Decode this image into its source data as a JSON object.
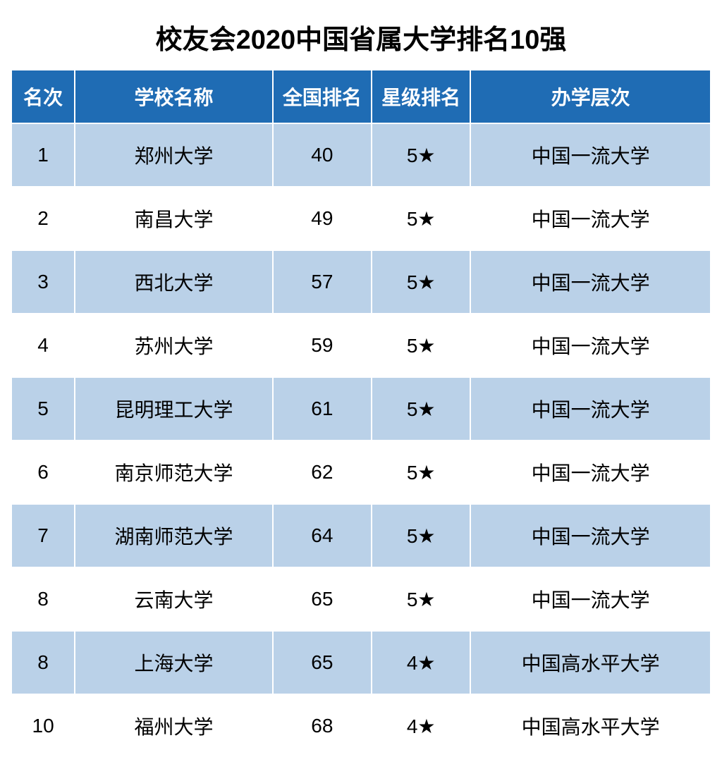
{
  "title": "校友会2020中国省属大学排名10强",
  "table": {
    "columns": [
      {
        "key": "rank",
        "label": "名次",
        "class": "col-rank"
      },
      {
        "key": "school",
        "label": "学校名称",
        "class": "col-school"
      },
      {
        "key": "national_rank",
        "label": "全国排名",
        "class": "col-national"
      },
      {
        "key": "star_rank",
        "label": "星级排名",
        "class": "col-star"
      },
      {
        "key": "level",
        "label": "办学层次",
        "class": "col-level"
      }
    ],
    "rows": [
      {
        "rank": "1",
        "school": "郑州大学",
        "national_rank": "40",
        "star_rank": "5★",
        "level": "中国一流大学"
      },
      {
        "rank": "2",
        "school": "南昌大学",
        "national_rank": "49",
        "star_rank": "5★",
        "level": "中国一流大学"
      },
      {
        "rank": "3",
        "school": "西北大学",
        "national_rank": "57",
        "star_rank": "5★",
        "level": "中国一流大学"
      },
      {
        "rank": "4",
        "school": "苏州大学",
        "national_rank": "59",
        "star_rank": "5★",
        "level": "中国一流大学"
      },
      {
        "rank": "5",
        "school": "昆明理工大学",
        "national_rank": "61",
        "star_rank": "5★",
        "level": "中国一流大学"
      },
      {
        "rank": "6",
        "school": "南京师范大学",
        "national_rank": "62",
        "star_rank": "5★",
        "level": "中国一流大学"
      },
      {
        "rank": "7",
        "school": "湖南师范大学",
        "national_rank": "64",
        "star_rank": "5★",
        "level": "中国一流大学"
      },
      {
        "rank": "8",
        "school": "云南大学",
        "national_rank": "65",
        "star_rank": "5★",
        "level": "中国一流大学"
      },
      {
        "rank": "8",
        "school": "上海大学",
        "national_rank": "65",
        "star_rank": "4★",
        "level": "中国高水平大学"
      },
      {
        "rank": "10",
        "school": "福州大学",
        "national_rank": "68",
        "star_rank": "4★",
        "level": "中国高水平大学"
      }
    ],
    "header_bg_color": "#1f6cb4",
    "header_text_color": "#ffffff",
    "row_odd_bg_color": "#bad1e8",
    "row_even_bg_color": "#ffffff",
    "text_color": "#000000",
    "border_color": "#ffffff",
    "title_fontsize": 38,
    "header_fontsize": 28,
    "cell_fontsize": 28
  }
}
